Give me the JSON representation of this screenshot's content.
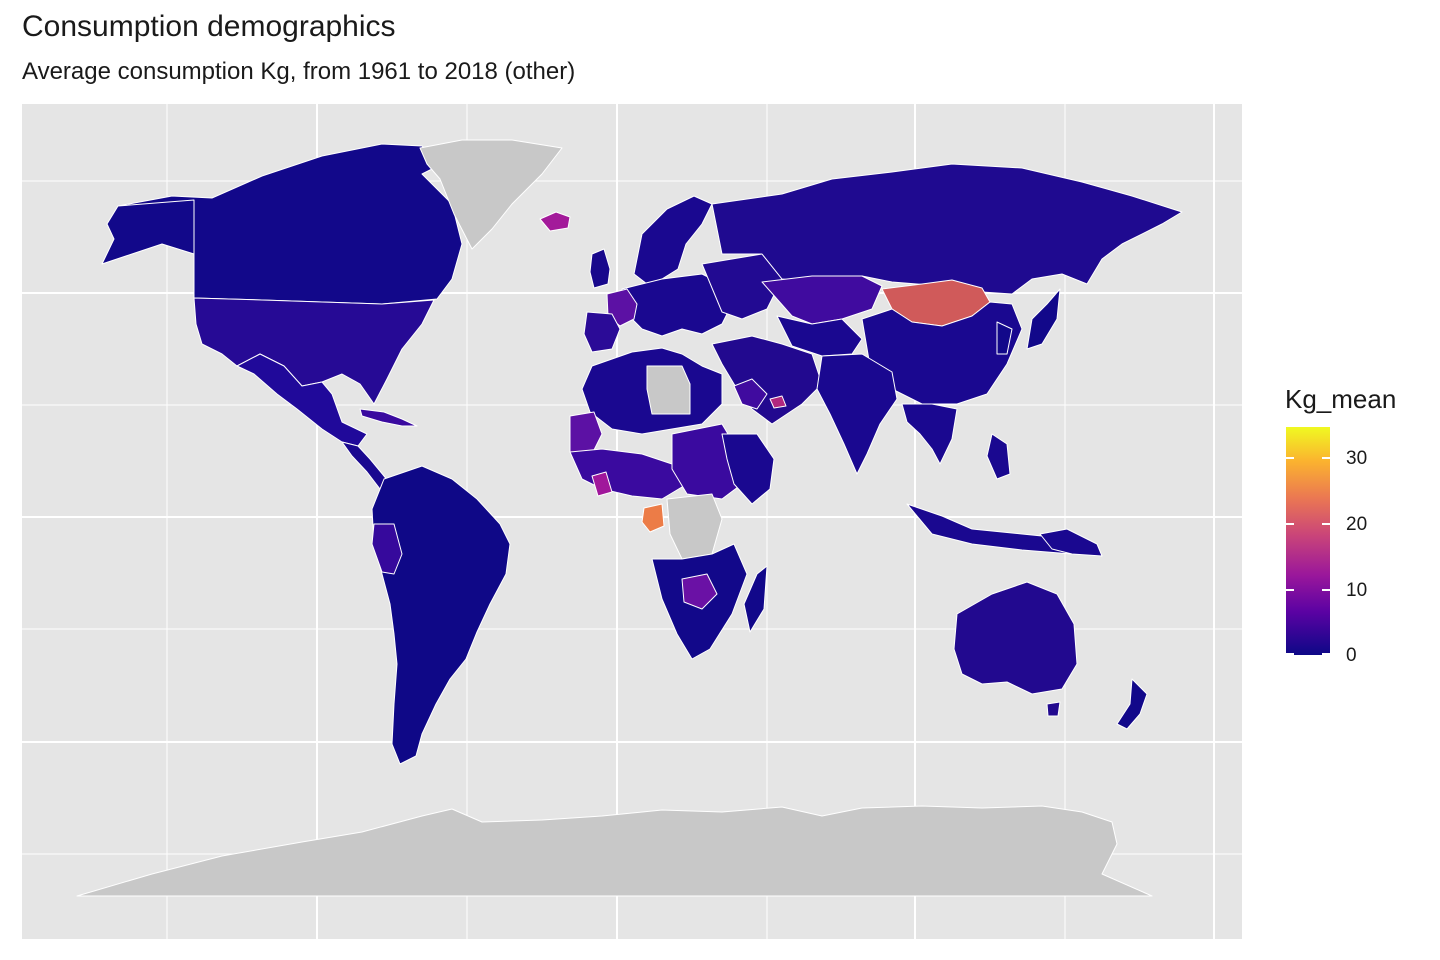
{
  "chart_data": {
    "type": "choropleth",
    "title": "Consumption demographics",
    "subtitle": "Average consumption Kg, from 1961 to 2018 (other)",
    "legend": {
      "title": "Kg_mean",
      "ticks": [
        "0",
        "10",
        "20",
        "30"
      ],
      "range": [
        0,
        35
      ],
      "placement": "right",
      "palette": "plasma"
    },
    "grid": true,
    "no_data_color": "#c8c8c8",
    "regions": [
      {
        "name": "Mongolia",
        "value": 20
      },
      {
        "name": "Gabon",
        "value": 25
      },
      {
        "name": "Ghana",
        "value": 13
      },
      {
        "name": "Iceland",
        "value": 12
      },
      {
        "name": "United Arab Emirates",
        "value": 14
      },
      {
        "name": "Mauritania",
        "value": 8
      },
      {
        "name": "France",
        "value": 8
      },
      {
        "name": "Zambia",
        "value": 8
      },
      {
        "name": "Kazakhstan",
        "value": 5
      },
      {
        "name": "Australia",
        "value": 3
      },
      {
        "name": "United States",
        "value": 3
      },
      {
        "name": "Russia",
        "value": 1
      },
      {
        "name": "Canada",
        "value": 1
      },
      {
        "name": "Brazil",
        "value": 1
      },
      {
        "name": "China",
        "value": 1
      },
      {
        "name": "Greenland",
        "value": null
      },
      {
        "name": "Libya",
        "value": null
      },
      {
        "name": "DR Congo",
        "value": null
      },
      {
        "name": "Antarctica",
        "value": null
      }
    ]
  }
}
